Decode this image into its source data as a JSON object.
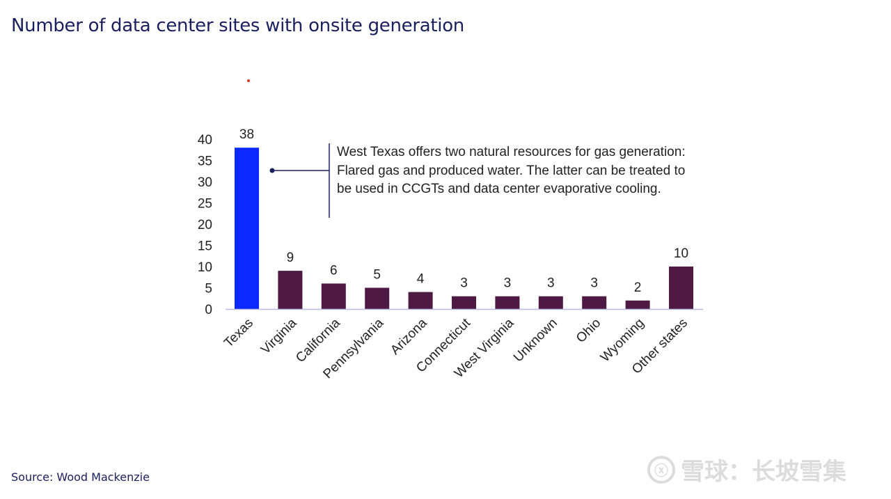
{
  "title": "Number of data center sites with onsite generation",
  "source": "Source: Wood Mackenzie",
  "watermark": {
    "logo_text": "ⓧ",
    "text": "雪球：长坡雪集"
  },
  "colors": {
    "highlight": "#0a28ff",
    "bar": "#4e1a44",
    "axis": "#b8b8e0",
    "title": "#1a1f5e"
  },
  "chart_data": {
    "type": "bar",
    "title": "Number of data center sites with onsite generation",
    "xlabel": "",
    "ylabel": "",
    "ylim": [
      0,
      40
    ],
    "yticks": [
      0,
      5,
      10,
      15,
      20,
      25,
      30,
      35,
      40
    ],
    "categories": [
      "Texas",
      "Virginia",
      "California",
      "Pennsylvania",
      "Arizona",
      "Connecticut",
      "West Virginia",
      "Unknown",
      "Ohio",
      "Wyoming",
      "Other states"
    ],
    "values": [
      38,
      9,
      6,
      5,
      4,
      3,
      3,
      3,
      3,
      2,
      10
    ],
    "highlight_index": 0,
    "grid": false,
    "annotation": "West Texas offers two natural resources for gas generation: Flared gas and produced water. The latter can be treated to be used in CCGTs and data center evaporative cooling."
  }
}
